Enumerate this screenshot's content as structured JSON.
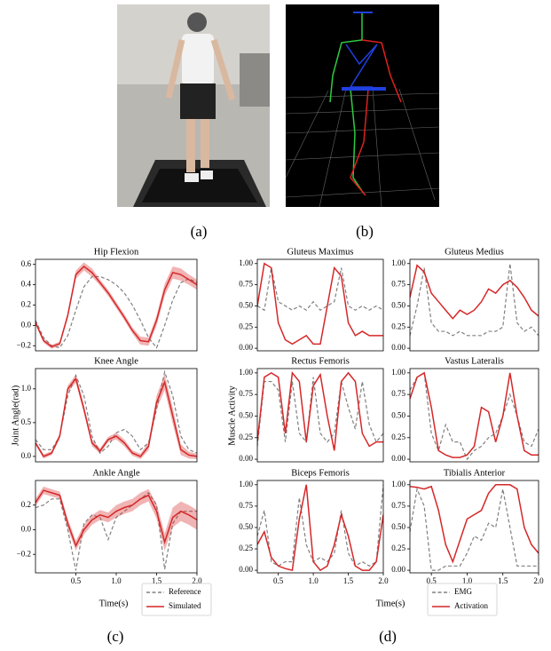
{
  "figure": {
    "panel_labels": [
      "(a)",
      "(b)",
      "(c)",
      "(d)"
    ]
  },
  "chart_data": [
    {
      "type": "line",
      "title": "Hip Flexion",
      "x": [
        0.0,
        0.1,
        0.2,
        0.3,
        0.4,
        0.5,
        0.6,
        0.7,
        0.8,
        0.9,
        1.0,
        1.1,
        1.2,
        1.3,
        1.4,
        1.5,
        1.6,
        1.7,
        1.8,
        1.9,
        2.0
      ],
      "xlim": [
        0,
        2.0
      ],
      "ylim": [
        -0.25,
        0.65
      ],
      "yticks": [
        {
          "value": -0.2,
          "label": "−0.2"
        },
        {
          "value": 0,
          "label": "0.0"
        },
        0.2,
        0.4,
        0.6
      ],
      "series": [
        {
          "color": "#808080",
          "dash": true,
          "values": [
            0.05,
            -0.12,
            -0.2,
            -0.22,
            -0.1,
            0.15,
            0.38,
            0.48,
            0.48,
            0.45,
            0.4,
            0.32,
            0.2,
            0.05,
            -0.12,
            -0.22,
            0.0,
            0.25,
            0.42,
            0.46,
            0.42
          ]
        },
        {
          "color": "#d62728",
          "values": [
            0.03,
            -0.15,
            -0.21,
            -0.18,
            0.1,
            0.5,
            0.58,
            0.52,
            0.42,
            0.32,
            0.2,
            0.08,
            -0.05,
            -0.15,
            -0.16,
            0.05,
            0.35,
            0.52,
            0.5,
            0.45,
            0.4
          ],
          "band": [
            0.02,
            0.02,
            0.02,
            0.02,
            0.03,
            0.04,
            0.04,
            0.04,
            0.03,
            0.03,
            0.03,
            0.03,
            0.03,
            0.04,
            0.04,
            0.05,
            0.06,
            0.06,
            0.06,
            0.05,
            0.05
          ]
        }
      ]
    },
    {
      "type": "line",
      "title": "Knee Angle",
      "ylabel": "Joint Angle(rad)",
      "x": [
        0.0,
        0.1,
        0.2,
        0.3,
        0.4,
        0.5,
        0.6,
        0.7,
        0.8,
        0.9,
        1.0,
        1.1,
        1.2,
        1.3,
        1.4,
        1.5,
        1.6,
        1.7,
        1.8,
        1.9,
        2.0
      ],
      "xlim": [
        0,
        2.0
      ],
      "ylim": [
        -0.08,
        1.3
      ],
      "yticks": [
        {
          "value": 0,
          "label": "0.0"
        },
        0.5,
        {
          "value": 1,
          "label": "1.0"
        }
      ],
      "series": [
        {
          "color": "#808080",
          "dash": true,
          "values": [
            0.25,
            0.1,
            0.1,
            0.3,
            0.9,
            1.2,
            0.9,
            0.3,
            0.05,
            0.15,
            0.35,
            0.4,
            0.3,
            0.1,
            0.2,
            0.7,
            1.25,
            0.9,
            0.3,
            0.1,
            0.05
          ]
        },
        {
          "color": "#d62728",
          "values": [
            0.2,
            0.0,
            0.05,
            0.3,
            1.0,
            1.15,
            0.7,
            0.2,
            0.08,
            0.25,
            0.3,
            0.2,
            0.05,
            0.0,
            0.15,
            0.8,
            1.1,
            0.6,
            0.1,
            0.02,
            0.0
          ],
          "band": [
            0.03,
            0.03,
            0.03,
            0.04,
            0.05,
            0.06,
            0.06,
            0.05,
            0.04,
            0.04,
            0.05,
            0.05,
            0.04,
            0.04,
            0.06,
            0.1,
            0.12,
            0.12,
            0.08,
            0.05,
            0.04
          ]
        }
      ]
    },
    {
      "type": "line",
      "title": "Ankle Angle",
      "xlabel": "Time(s)",
      "x": [
        0.0,
        0.1,
        0.2,
        0.3,
        0.4,
        0.5,
        0.6,
        0.7,
        0.8,
        0.9,
        1.0,
        1.1,
        1.2,
        1.3,
        1.4,
        1.5,
        1.6,
        1.7,
        1.8,
        1.9,
        2.0
      ],
      "xlim": [
        0,
        2.0
      ],
      "ylim": [
        -0.35,
        0.4
      ],
      "xticks": [
        0.5,
        {
          "value": 1,
          "label": "1.0"
        },
        1.5,
        {
          "value": 2,
          "label": "2.0"
        }
      ],
      "yticks": [
        {
          "value": -0.2,
          "label": "−0.2"
        },
        {
          "value": 0,
          "label": "0.0"
        },
        0.2
      ],
      "series": [
        {
          "name": "Reference",
          "color": "#808080",
          "dash": true,
          "values": [
            0.18,
            0.2,
            0.25,
            0.25,
            0.0,
            -0.33,
            0.05,
            0.12,
            0.1,
            -0.08,
            0.1,
            0.15,
            0.2,
            0.25,
            0.3,
            0.2,
            -0.32,
            0.05,
            0.15,
            0.15,
            0.15
          ]
        },
        {
          "name": "Simulated",
          "color": "#d62728",
          "values": [
            0.22,
            0.32,
            0.3,
            0.28,
            0.05,
            -0.13,
            0.0,
            0.08,
            0.12,
            0.1,
            0.15,
            0.18,
            0.2,
            0.25,
            0.28,
            0.15,
            -0.1,
            0.1,
            0.15,
            0.12,
            0.08
          ],
          "band": [
            0.03,
            0.03,
            0.03,
            0.03,
            0.04,
            0.04,
            0.04,
            0.04,
            0.04,
            0.04,
            0.05,
            0.05,
            0.05,
            0.05,
            0.05,
            0.06,
            0.07,
            0.08,
            0.08,
            0.08,
            0.08
          ]
        }
      ]
    },
    {
      "type": "line",
      "title": "Gluteus Maximus",
      "x": [
        0.2,
        0.3,
        0.4,
        0.5,
        0.6,
        0.7,
        0.8,
        0.9,
        1.0,
        1.1,
        1.2,
        1.3,
        1.4,
        1.5,
        1.6,
        1.7,
        1.8,
        1.9,
        2.0
      ],
      "xlim": [
        0.2,
        2.0
      ],
      "ylim": [
        -0.03,
        1.05
      ],
      "yticks": [
        {
          "value": 0,
          "label": "0.00"
        },
        0.25,
        {
          "value": 0.5,
          "label": "0.50"
        },
        0.75,
        {
          "value": 1,
          "label": "1.00"
        }
      ],
      "series": [
        {
          "color": "#808080",
          "dash": true,
          "values": [
            0.5,
            0.45,
            0.95,
            0.55,
            0.5,
            0.45,
            0.5,
            0.45,
            0.55,
            0.45,
            0.5,
            0.55,
            0.95,
            0.5,
            0.45,
            0.5,
            0.45,
            0.5,
            0.45
          ]
        },
        {
          "color": "#d62728",
          "values": [
            0.5,
            1.0,
            0.95,
            0.3,
            0.1,
            0.05,
            0.1,
            0.15,
            0.05,
            0.05,
            0.5,
            0.95,
            0.85,
            0.3,
            0.15,
            0.2,
            0.15,
            0.15,
            0.15
          ]
        }
      ]
    },
    {
      "type": "line",
      "title": "Gluteus Medius",
      "x": [
        0.2,
        0.3,
        0.4,
        0.5,
        0.6,
        0.7,
        0.8,
        0.9,
        1.0,
        1.1,
        1.2,
        1.3,
        1.4,
        1.5,
        1.6,
        1.7,
        1.8,
        1.9,
        2.0
      ],
      "xlim": [
        0.2,
        2.0
      ],
      "ylim": [
        -0.03,
        1.05
      ],
      "yticks": [
        {
          "value": 0,
          "label": "0.00"
        },
        0.25,
        {
          "value": 0.5,
          "label": "0.50"
        },
        0.75,
        {
          "value": 1,
          "label": "1.00"
        }
      ],
      "series": [
        {
          "color": "#808080",
          "dash": true,
          "values": [
            0.15,
            0.5,
            0.95,
            0.3,
            0.2,
            0.2,
            0.15,
            0.2,
            0.15,
            0.15,
            0.15,
            0.2,
            0.2,
            0.25,
            1.0,
            0.3,
            0.2,
            0.25,
            0.15
          ]
        },
        {
          "color": "#d62728",
          "values": [
            0.6,
            0.98,
            0.9,
            0.65,
            0.55,
            0.45,
            0.35,
            0.45,
            0.4,
            0.45,
            0.55,
            0.7,
            0.65,
            0.75,
            0.8,
            0.72,
            0.6,
            0.45,
            0.38
          ]
        }
      ]
    },
    {
      "type": "line",
      "title": "Rectus Femoris",
      "ylabel": "Muscle Activity",
      "x": [
        0.2,
        0.3,
        0.4,
        0.5,
        0.6,
        0.7,
        0.8,
        0.9,
        1.0,
        1.1,
        1.2,
        1.3,
        1.4,
        1.5,
        1.6,
        1.7,
        1.8,
        1.9,
        2.0
      ],
      "xlim": [
        0.2,
        2.0
      ],
      "ylim": [
        -0.03,
        1.05
      ],
      "yticks": [
        {
          "value": 0,
          "label": "0.00"
        },
        0.25,
        {
          "value": 0.5,
          "label": "0.50"
        },
        0.75,
        {
          "value": 1,
          "label": "1.00"
        }
      ],
      "series": [
        {
          "color": "#808080",
          "dash": true,
          "values": [
            0.15,
            0.9,
            0.9,
            0.8,
            0.2,
            0.9,
            0.3,
            0.2,
            0.95,
            0.3,
            0.2,
            0.3,
            0.9,
            0.6,
            0.35,
            0.9,
            0.4,
            0.2,
            0.3
          ]
        },
        {
          "color": "#d62728",
          "values": [
            0.2,
            0.95,
            1.0,
            0.95,
            0.3,
            1.0,
            0.9,
            0.2,
            0.85,
            0.98,
            0.5,
            0.1,
            0.9,
            1.0,
            0.9,
            0.3,
            0.15,
            0.2,
            0.2
          ]
        }
      ]
    },
    {
      "type": "line",
      "title": "Vastus Lateralis",
      "x": [
        0.2,
        0.3,
        0.4,
        0.5,
        0.6,
        0.7,
        0.8,
        0.9,
        1.0,
        1.1,
        1.2,
        1.3,
        1.4,
        1.5,
        1.6,
        1.7,
        1.8,
        1.9,
        2.0
      ],
      "xlim": [
        0.2,
        2.0
      ],
      "ylim": [
        -0.03,
        1.05
      ],
      "yticks": [
        {
          "value": 0,
          "label": "0.00"
        },
        0.25,
        {
          "value": 0.5,
          "label": "0.50"
        },
        0.75,
        {
          "value": 1,
          "label": "1.00"
        }
      ],
      "series": [
        {
          "color": "#808080",
          "dash": true,
          "values": [
            0.8,
            0.95,
            1.0,
            0.3,
            0.1,
            0.4,
            0.2,
            0.2,
            0.0,
            0.1,
            0.15,
            0.25,
            0.3,
            0.5,
            0.75,
            0.5,
            0.2,
            0.15,
            0.35
          ]
        },
        {
          "color": "#d62728",
          "values": [
            0.7,
            0.95,
            1.0,
            0.6,
            0.1,
            0.05,
            0.02,
            0.02,
            0.05,
            0.15,
            0.6,
            0.55,
            0.2,
            0.5,
            1.0,
            0.5,
            0.1,
            0.05,
            0.05
          ]
        }
      ]
    },
    {
      "type": "line",
      "title": "Biceps Femoris",
      "x": [
        0.2,
        0.3,
        0.4,
        0.5,
        0.6,
        0.7,
        0.8,
        0.9,
        1.0,
        1.1,
        1.2,
        1.3,
        1.4,
        1.5,
        1.6,
        1.7,
        1.8,
        1.9,
        2.0
      ],
      "xlim": [
        0.2,
        2.0
      ],
      "ylim": [
        -0.03,
        1.05
      ],
      "xticks": [
        0.5,
        {
          "value": 1,
          "label": "1.0"
        },
        1.5,
        {
          "value": 2,
          "label": "2.0"
        }
      ],
      "yticks": [
        {
          "value": 0,
          "label": "0.00"
        },
        0.25,
        {
          "value": 0.5,
          "label": "0.50"
        },
        0.75,
        {
          "value": 1,
          "label": "1.00"
        }
      ],
      "series": [
        {
          "color": "#808080",
          "dash": true,
          "values": [
            0.4,
            0.7,
            0.1,
            0.05,
            0.1,
            0.1,
            0.85,
            0.3,
            0.1,
            0.15,
            0.1,
            0.2,
            0.7,
            0.2,
            0.05,
            0.1,
            0.05,
            0.1,
            1.0
          ]
        },
        {
          "color": "#d62728",
          "values": [
            0.3,
            0.45,
            0.15,
            0.05,
            0.02,
            0.0,
            0.6,
            1.0,
            0.1,
            0.0,
            0.05,
            0.3,
            0.65,
            0.4,
            0.05,
            0.0,
            0.0,
            0.1,
            0.65
          ]
        }
      ]
    },
    {
      "type": "line",
      "title": "Tibialis Anterior",
      "xlabel": "Time(s)",
      "x": [
        0.2,
        0.3,
        0.4,
        0.5,
        0.6,
        0.7,
        0.8,
        0.9,
        1.0,
        1.1,
        1.2,
        1.3,
        1.4,
        1.5,
        1.6,
        1.7,
        1.8,
        1.9,
        2.0
      ],
      "xlim": [
        0.2,
        2.0
      ],
      "ylim": [
        -0.03,
        1.05
      ],
      "xticks": [
        0.5,
        {
          "value": 1,
          "label": "1.0"
        },
        1.5,
        {
          "value": 2,
          "label": "2.0"
        }
      ],
      "yticks": [
        {
          "value": 0,
          "label": "0.00"
        },
        0.25,
        {
          "value": 0.5,
          "label": "0.50"
        },
        0.75,
        {
          "value": 1,
          "label": "1.00"
        }
      ],
      "series": [
        {
          "name": "EMG",
          "color": "#808080",
          "dash": true,
          "values": [
            0.45,
            0.95,
            0.75,
            0.0,
            0.0,
            0.05,
            0.05,
            0.05,
            0.2,
            0.4,
            0.35,
            0.55,
            0.5,
            0.95,
            0.5,
            0.05,
            0.05,
            0.05,
            0.05
          ]
        },
        {
          "name": "Activation",
          "color": "#d62728",
          "values": [
            0.98,
            0.97,
            0.95,
            0.98,
            0.7,
            0.3,
            0.1,
            0.35,
            0.6,
            0.65,
            0.7,
            0.9,
            1.0,
            1.0,
            1.0,
            0.95,
            0.5,
            0.3,
            0.2
          ]
        }
      ]
    }
  ]
}
